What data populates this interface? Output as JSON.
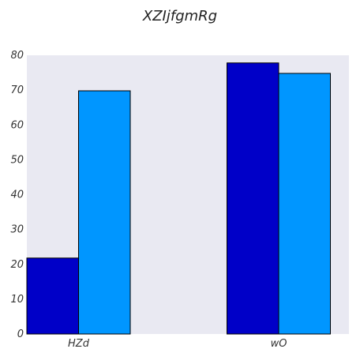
{
  "chart_data": {
    "type": "bar",
    "title": "XZIjfgmRg",
    "categories": [
      "HZd",
      "wO"
    ],
    "series": [
      {
        "values": [
          21.8,
          77.8
        ],
        "color": "#0000c8"
      },
      {
        "values": [
          69.8,
          74.8
        ],
        "color": "#0096ff"
      }
    ],
    "ylim": [
      0,
      80
    ],
    "yticks": [
      0,
      10,
      20,
      30,
      40,
      50,
      60,
      70,
      80
    ],
    "grid": false,
    "plot_background": "#e9e9f2"
  }
}
